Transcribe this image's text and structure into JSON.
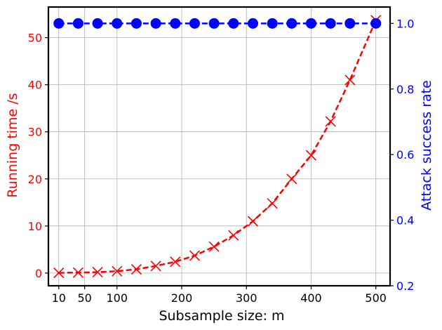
{
  "chart_data": {
    "type": "line",
    "title": "",
    "xlabel": "Subsample size: m",
    "ylabel_left": "Running time /s",
    "ylabel_right": "Attack success rate",
    "xlim": [
      -6,
      522
    ],
    "ylim_left": [
      -2.7,
      56.5
    ],
    "ylim_right": [
      0.2,
      1.05
    ],
    "xticks": [
      10,
      50,
      100,
      200,
      300,
      400,
      500
    ],
    "yticks_left": [
      0,
      10,
      20,
      30,
      40,
      50
    ],
    "yticks_right": [
      0.2,
      0.4,
      0.6,
      0.8,
      1.0
    ],
    "xtick_labels": [
      "10",
      "50",
      "100",
      "200",
      "300",
      "400",
      "500"
    ],
    "ytick_labels_left": [
      "0",
      "10",
      "20",
      "30",
      "40",
      "50"
    ],
    "ytick_labels_right": [
      "0.2",
      "0.4",
      "0.6",
      "0.8",
      "1.0"
    ],
    "grid": true,
    "colors": {
      "left_axis": "#ff0000",
      "right_axis": "#0000ff",
      "frame": "#000000",
      "grid": "#b0b0b0"
    },
    "series": [
      {
        "axis": "left",
        "color": "#ff0000",
        "linestyle": "dashed",
        "marker": "x",
        "x": [
          10,
          40,
          70,
          100,
          130,
          160,
          190,
          220,
          250,
          280,
          310,
          340,
          370,
          400,
          430,
          460,
          500
        ],
        "y": [
          0.05,
          0.1,
          0.2,
          0.4,
          0.8,
          1.5,
          2.4,
          3.7,
          5.6,
          8.0,
          11.0,
          14.8,
          20.0,
          25.0,
          32.2,
          41.0,
          53.7
        ]
      },
      {
        "axis": "right",
        "color": "#0000ff",
        "linestyle": "dashed",
        "marker": "o",
        "x": [
          10,
          40,
          70,
          100,
          130,
          160,
          190,
          220,
          250,
          280,
          310,
          340,
          370,
          400,
          430,
          460,
          500
        ],
        "y": [
          1.0,
          1.0,
          1.0,
          1.0,
          1.0,
          1.0,
          1.0,
          1.0,
          1.0,
          1.0,
          1.0,
          1.0,
          1.0,
          1.0,
          1.0,
          1.0,
          1.0
        ]
      }
    ]
  }
}
